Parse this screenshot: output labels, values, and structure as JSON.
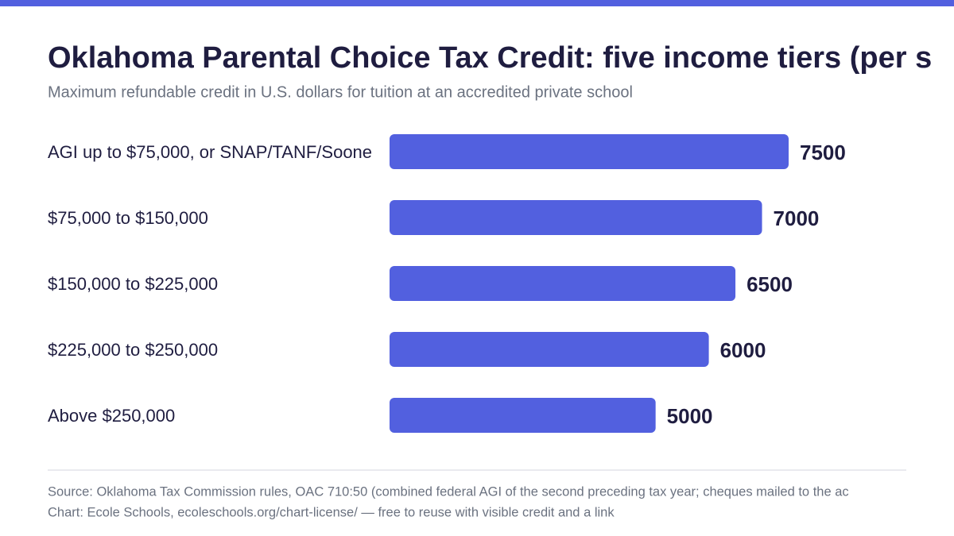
{
  "chart_data": {
    "type": "bar",
    "orientation": "horizontal",
    "title": "Oklahoma Parental Choice Tax Credit: five income tiers (per s",
    "subtitle": "Maximum refundable credit in U.S. dollars for tuition at an accredited private school",
    "categories": [
      "AGI up to $75,000, or SNAP/TANF/Soone",
      "$75,000 to $150,000",
      "$150,000 to $225,000",
      "$225,000 to $250,000",
      "Above $250,000"
    ],
    "values": [
      7500,
      7000,
      6500,
      6000,
      5000
    ],
    "color": "#5260df",
    "source": "Source: Oklahoma Tax Commission rules, OAC 710:50 (combined federal AGI of the second preceding tax year; cheques mailed to the ac",
    "credit": "Chart: Ecole Schools, ecoleschools.org/chart-license/ — free to reuse with visible credit and a link"
  }
}
